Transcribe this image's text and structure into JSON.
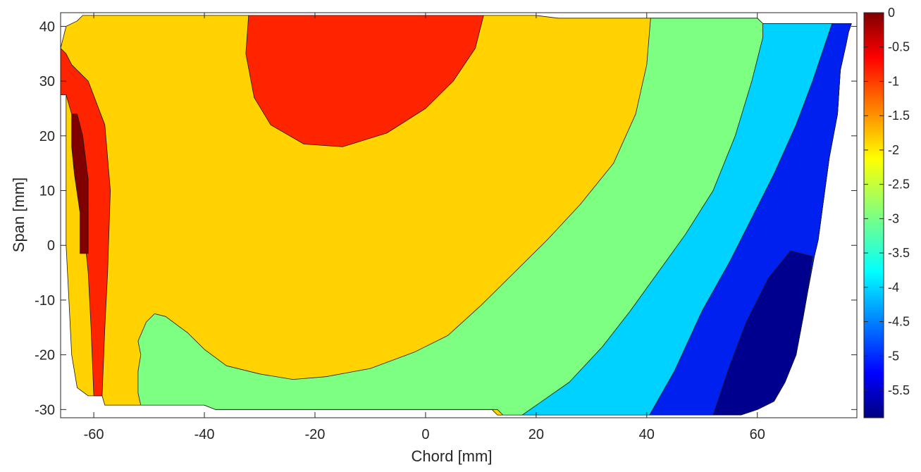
{
  "chart_data": {
    "type": "contour",
    "title": "",
    "xlabel": "Chord [mm]",
    "ylabel": "Span [mm]",
    "xlim": [
      -66,
      78
    ],
    "ylim": [
      -31.5,
      42.5
    ],
    "xticks": [
      -60,
      -40,
      -20,
      0,
      20,
      40,
      60
    ],
    "yticks": [
      -30,
      -20,
      -10,
      0,
      10,
      20,
      30,
      40
    ],
    "colorbar": {
      "colormap": "jet",
      "range": [
        -5.9,
        0
      ],
      "ticks": [
        0,
        -0.5,
        -1,
        -1.5,
        -2,
        -2.5,
        -3,
        -3.5,
        -4,
        -4.5,
        -5,
        -5.5
      ],
      "tick_labels": [
        "0",
        "-0.5",
        "-1",
        "-1.5",
        "-2",
        "-2.5",
        "-3",
        "-3.5",
        "-4",
        "-4.5",
        "-5",
        "-5.5"
      ]
    },
    "levels": [
      {
        "label": "-5.5 to -5.9",
        "color": "#00008f"
      },
      {
        "label": "-5 to -5.5",
        "color": "#0020ef"
      },
      {
        "label": "-4 to -5",
        "color": "#00d2ff"
      },
      {
        "label": "-3 to -4",
        "color": "#7dff82"
      },
      {
        "label": "-2 to -3",
        "color": "#ffd200"
      },
      {
        "label": "-1 to -2",
        "color": "#ff2400"
      },
      {
        "label": "0 to -1",
        "color": "#800000"
      }
    ],
    "regions": [
      {
        "level": 4,
        "points": [
          [
            -62,
            42
          ],
          [
            -45,
            42
          ],
          [
            -30,
            42
          ],
          [
            -10,
            42
          ],
          [
            5,
            42
          ],
          [
            20,
            42
          ],
          [
            24,
            41.5
          ],
          [
            60,
            41.5
          ],
          [
            61,
            40.5
          ],
          [
            77,
            40.5
          ],
          [
            76.5,
            39
          ],
          [
            76,
            36.5
          ],
          [
            75,
            32
          ],
          [
            74.5,
            24
          ],
          [
            73,
            16
          ],
          [
            72.2,
            10
          ],
          [
            71,
            1
          ],
          [
            70.3,
            -2
          ],
          [
            69,
            -9
          ],
          [
            68.3,
            -13
          ],
          [
            67,
            -20
          ],
          [
            65,
            -25
          ],
          [
            63,
            -28.5
          ],
          [
            60,
            -30
          ],
          [
            57,
            -31
          ],
          [
            46,
            -31
          ],
          [
            13,
            -31
          ],
          [
            12,
            -30
          ],
          [
            -38,
            -30
          ],
          [
            -40,
            -29.2
          ],
          [
            -45,
            -29.2
          ],
          [
            -58,
            -29.2
          ],
          [
            -58.5,
            -27.5
          ],
          [
            -61,
            -27.5
          ],
          [
            -63,
            -26
          ],
          [
            -64,
            -20
          ],
          [
            -64.5,
            -10
          ],
          [
            -65,
            0
          ],
          [
            -65,
            10
          ],
          [
            -65,
            20
          ],
          [
            -65,
            27.5
          ],
          [
            -66,
            27.5
          ],
          [
            -66,
            36
          ],
          [
            -65,
            40
          ],
          [
            -63,
            41
          ]
        ]
      },
      {
        "level": 3,
        "points": [
          [
            40.7,
            41.5
          ],
          [
            60,
            41.5
          ],
          [
            61,
            40.5
          ],
          [
            77,
            40.5
          ],
          [
            76.5,
            39
          ],
          [
            76,
            36.5
          ],
          [
            75,
            32
          ],
          [
            74.5,
            24
          ],
          [
            73,
            16
          ],
          [
            72.2,
            10
          ],
          [
            71,
            1
          ],
          [
            70.3,
            -2
          ],
          [
            69,
            -9
          ],
          [
            68.3,
            -13
          ],
          [
            67,
            -20
          ],
          [
            65,
            -25
          ],
          [
            63,
            -28.5
          ],
          [
            60,
            -30
          ],
          [
            57,
            -31
          ],
          [
            46,
            -31
          ],
          [
            14,
            -31
          ],
          [
            13,
            -30
          ],
          [
            -38,
            -30
          ],
          [
            -40,
            -29.2
          ],
          [
            -51.5,
            -29.2
          ],
          [
            -52,
            -27
          ],
          [
            -52,
            -23
          ],
          [
            -51.5,
            -20
          ],
          [
            -52,
            -17.5
          ],
          [
            -50.5,
            -14
          ],
          [
            -49,
            -12.5
          ],
          [
            -47,
            -13
          ],
          [
            -43,
            -16
          ],
          [
            -40,
            -19
          ],
          [
            -36,
            -22
          ],
          [
            -30,
            -23.5
          ],
          [
            -24,
            -24.5
          ],
          [
            -18,
            -24
          ],
          [
            -10,
            -22.5
          ],
          [
            -2,
            -19.5
          ],
          [
            4,
            -16.5
          ],
          [
            10,
            -11
          ],
          [
            16,
            -5
          ],
          [
            22,
            1
          ],
          [
            28,
            7.5
          ],
          [
            34,
            15
          ],
          [
            38,
            24
          ],
          [
            40,
            33
          ],
          [
            40.7,
            41.5
          ]
        ]
      },
      {
        "level": 2,
        "points": [
          [
            61,
            40.5
          ],
          [
            77,
            40.5
          ],
          [
            76.5,
            39
          ],
          [
            76,
            36.5
          ],
          [
            75,
            32
          ],
          [
            74.5,
            24
          ],
          [
            73,
            16
          ],
          [
            72.2,
            10
          ],
          [
            71,
            1
          ],
          [
            70.3,
            -2
          ],
          [
            69,
            -9
          ],
          [
            68.3,
            -13
          ],
          [
            67,
            -20
          ],
          [
            65,
            -25
          ],
          [
            63,
            -28.5
          ],
          [
            60,
            -30
          ],
          [
            57,
            -31
          ],
          [
            17.5,
            -31
          ],
          [
            26,
            -25
          ],
          [
            32,
            -18.5
          ],
          [
            37,
            -12
          ],
          [
            42,
            -5
          ],
          [
            47,
            2
          ],
          [
            52,
            10
          ],
          [
            56,
            20
          ],
          [
            59,
            30
          ],
          [
            61,
            38
          ]
        ]
      },
      {
        "level": 1,
        "points": [
          [
            73.5,
            40.5
          ],
          [
            77,
            40.5
          ],
          [
            76.5,
            39
          ],
          [
            76,
            36.5
          ],
          [
            75,
            32
          ],
          [
            74.5,
            24
          ],
          [
            73,
            16
          ],
          [
            72.2,
            10
          ],
          [
            71,
            1
          ],
          [
            70.3,
            -2
          ],
          [
            69,
            -9
          ],
          [
            68.3,
            -13
          ],
          [
            67,
            -20
          ],
          [
            65,
            -25
          ],
          [
            63,
            -28.5
          ],
          [
            60,
            -30
          ],
          [
            57,
            -31
          ],
          [
            40.5,
            -31
          ],
          [
            45,
            -23
          ],
          [
            50,
            -12
          ],
          [
            55,
            -3
          ],
          [
            59,
            5
          ],
          [
            63,
            13
          ],
          [
            67,
            22
          ],
          [
            70,
            30
          ],
          [
            72,
            36
          ]
        ]
      },
      {
        "level": 0,
        "points": [
          [
            70,
            -2
          ],
          [
            69,
            -9
          ],
          [
            68.3,
            -13
          ],
          [
            67,
            -20
          ],
          [
            65,
            -25
          ],
          [
            63,
            -28.5
          ],
          [
            60,
            -30
          ],
          [
            57,
            -31
          ],
          [
            52,
            -31
          ],
          [
            55,
            -22
          ],
          [
            58,
            -14
          ],
          [
            62,
            -6
          ],
          [
            66,
            -1
          ]
        ]
      },
      {
        "level": 5,
        "points": [
          [
            -32,
            42
          ],
          [
            10.5,
            42
          ],
          [
            9,
            36
          ],
          [
            5,
            30
          ],
          [
            0,
            25
          ],
          [
            -7,
            20.5
          ],
          [
            -15,
            18
          ],
          [
            -22,
            18.5
          ],
          [
            -28,
            22
          ],
          [
            -31,
            27
          ],
          [
            -32.5,
            35
          ]
        ]
      },
      {
        "level": 5,
        "points": [
          [
            -66,
            36
          ],
          [
            -66,
            27.5
          ],
          [
            -65,
            27.5
          ],
          [
            -64,
            24
          ],
          [
            -63.5,
            15
          ],
          [
            -62,
            5
          ],
          [
            -61,
            -5
          ],
          [
            -60.5,
            -15
          ],
          [
            -60,
            -27.5
          ],
          [
            -58.5,
            -27.5
          ],
          [
            -58,
            -15
          ],
          [
            -57.5,
            -5
          ],
          [
            -57,
            10
          ],
          [
            -58,
            22
          ],
          [
            -61,
            30
          ],
          [
            -64,
            33
          ],
          [
            -65,
            35
          ]
        ]
      },
      {
        "level": 6,
        "points": [
          [
            -64,
            24
          ],
          [
            -63,
            24
          ],
          [
            -62,
            20
          ],
          [
            -61,
            12
          ],
          [
            -61,
            -1.5
          ],
          [
            -62.5,
            -1.5
          ],
          [
            -62.5,
            6
          ],
          [
            -63.5,
            13
          ],
          [
            -64,
            18
          ]
        ]
      }
    ]
  }
}
